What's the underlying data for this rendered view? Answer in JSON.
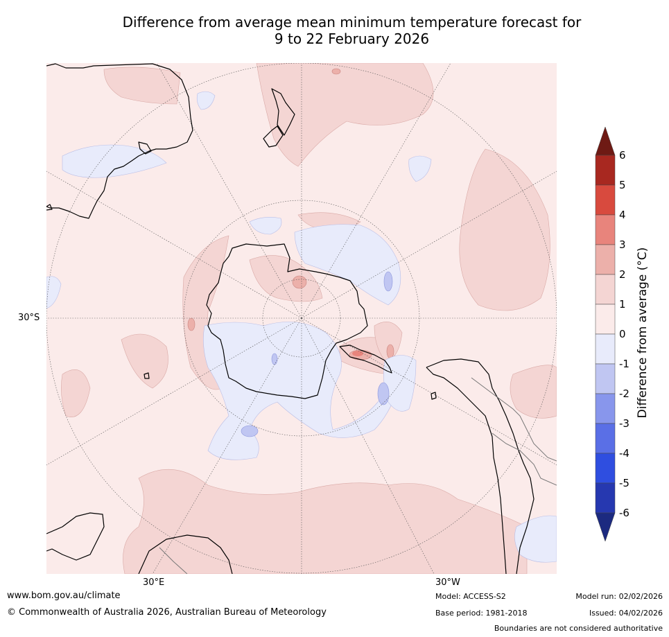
{
  "title": {
    "line1": "Difference from average mean minimum temperature forecast for",
    "line2": "9 to 22 February 2026"
  },
  "map": {
    "projection": "south-polar-stereographic",
    "labels": {
      "lat_30s": "30°S",
      "lon_30e": "30°E",
      "lon_30w": "30°W"
    }
  },
  "colorbar": {
    "title": "Difference from average ($^\\circ$C)",
    "title_display": "Difference from average (°C)",
    "ticks": [
      "6",
      "5",
      "4",
      "3",
      "2",
      "1",
      "0",
      "-1",
      "-2",
      "-3",
      "-4",
      "-5",
      "-6"
    ],
    "colors": {
      "above_6": "#6e1a14",
      "5_6": "#a82820",
      "4_5": "#d84a3e",
      "3_4": "#e8847c",
      "2_3": "#ecb0aa",
      "1_2": "#f4d5d3",
      "0_1": "#fbebea",
      "m1_0": "#e8ebfb",
      "m2_m1": "#c0c6f2",
      "m3_m2": "#8896ec",
      "m4_m3": "#5a6fe6",
      "m5_m4": "#2f4ee0",
      "m6_m5": "#2638b0",
      "below_m6": "#1c2a80"
    }
  },
  "footer": {
    "website": "www.bom.gov.au/climate",
    "copyright": "© Commonwealth of Australia 2026, Australian Bureau of Meteorology",
    "model": "Model: ACCESS-S2",
    "base_period": "Base period: 1981-2018",
    "model_run": "Model run: 02/02/2026",
    "issued": "Issued: 04/02/2026",
    "disclaimer": "Boundaries are not considered authoritative"
  }
}
